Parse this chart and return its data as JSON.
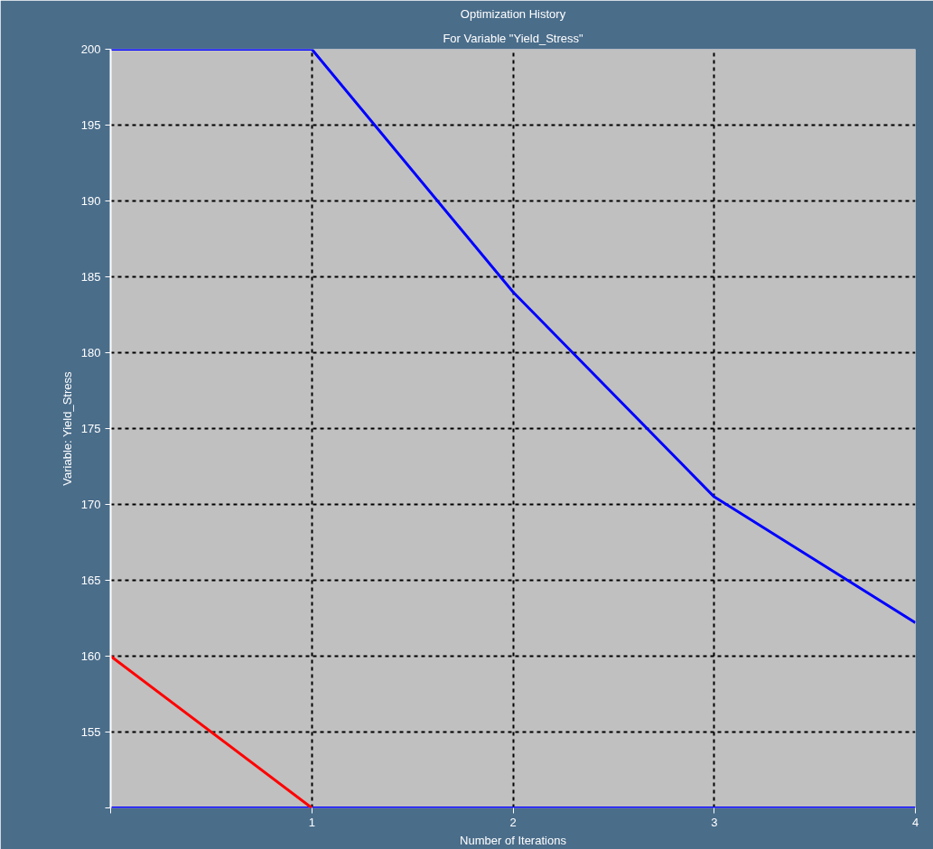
{
  "chart_data": {
    "type": "line",
    "title": "Optimization History",
    "subtitle": "For Variable \"Yield_Stress\"",
    "xlabel": "Number of Iterations",
    "ylabel": "Variable: Yield_Stress",
    "x": [
      0,
      1,
      2,
      3,
      4
    ],
    "series": [
      {
        "color": "#0000ff",
        "values": [
          200,
          200,
          184,
          170.5,
          162.2
        ]
      },
      {
        "color": "#0000ff",
        "values": [
          150,
          150,
          150,
          150,
          150
        ]
      },
      {
        "color": "#ff0000",
        "values": [
          160,
          150,
          null,
          null,
          null
        ]
      }
    ],
    "xlim": [
      0,
      4
    ],
    "ylim": [
      150,
      200
    ],
    "xticks": [
      {
        "value": 0,
        "label": null
      },
      1,
      2,
      3,
      4
    ],
    "yticks": [
      {
        "value": 150,
        "label": null
      },
      155,
      160,
      165,
      170,
      175,
      180,
      185,
      190,
      195,
      200
    ],
    "grid": true,
    "marker": "none",
    "line_style": "solid"
  }
}
